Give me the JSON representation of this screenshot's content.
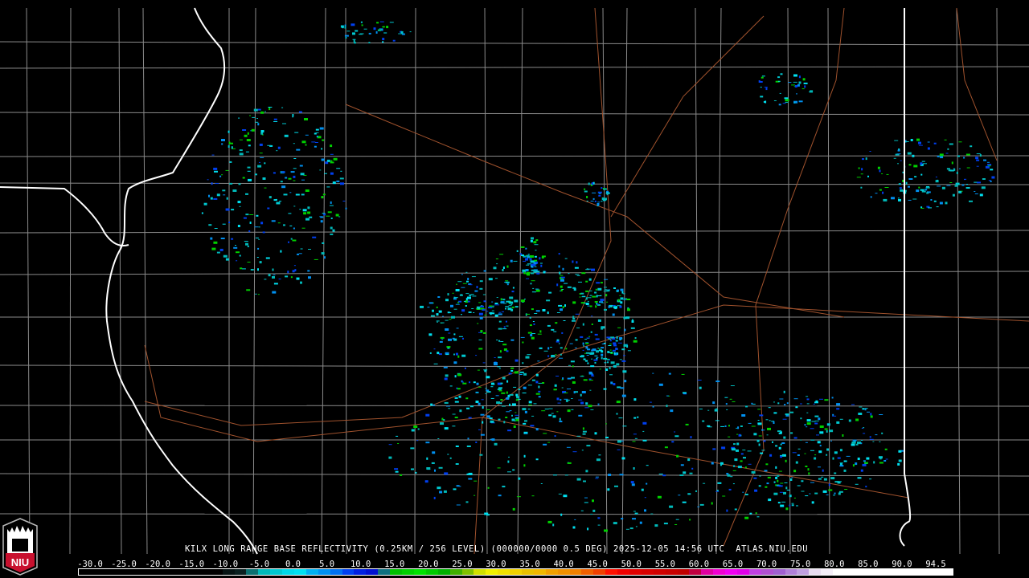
{
  "product_title": "KILX LONG RANGE BASE REFLECTIVITY (0.25KM / 256 LEVEL) (000000/0000 0.5 DEG) 2025-12-05 14:56 UTC  ATLAS.NIU.EDU",
  "logo": {
    "text": "NIU"
  },
  "colorbar": {
    "unit_labels": [
      "-30.0",
      "-25.0",
      "-20.0",
      "-15.0",
      "-10.0",
      "-5.0",
      "0.0",
      "5.0",
      "10.0",
      "15.0",
      "20.0",
      "25.0",
      "30.0",
      "35.0",
      "40.0",
      "45.0",
      "50.0",
      "55.0",
      "60.0",
      "65.0",
      "70.0",
      "75.0",
      "80.0",
      "85.0",
      "90.0",
      "94.5"
    ],
    "colors": [
      "#000000",
      "#000000",
      "#000000",
      "#000000",
      "#000000",
      "#000000",
      "#000000",
      "#000000",
      "#000000",
      "#000000",
      "#000000",
      "#000000",
      "#061414",
      "#0a2020",
      "#0a7070",
      "#00b8b8",
      "#00c8d0",
      "#00d8e8",
      "#00e0f0",
      "#00b0f0",
      "#0090f0",
      "#0070f0",
      "#0040f0",
      "#0020e0",
      "#0010d0",
      "#107080",
      "#00c000",
      "#00d000",
      "#00e000",
      "#00c800",
      "#00b000",
      "#40b000",
      "#80c000",
      "#d0e000",
      "#f0f000",
      "#f0e000",
      "#f0d000",
      "#e8c000",
      "#f0b800",
      "#f0a000",
      "#f09000",
      "#f08000",
      "#f06000",
      "#f04000",
      "#ff1000",
      "#f00000",
      "#e00000",
      "#d80000",
      "#d00000",
      "#c80000",
      "#c00000",
      "#c00040",
      "#e000a0",
      "#f000d0",
      "#f000f0",
      "#e000e8",
      "#c040e0",
      "#b050d0",
      "#a060d0",
      "#b080d8",
      "#c0a0e0",
      "#e8dcf0",
      "#f4eef8",
      "#ffffff",
      "#ffffff",
      "#ffffff",
      "#ffffff",
      "#ffffff",
      "#ffffff",
      "#ffffff",
      "#ffffff",
      "#ffffff",
      "#ffffff"
    ]
  },
  "map_colors": {
    "state_borders": "#ffffff",
    "county_borders": "#8a8a8a",
    "highways": "#a0522d"
  }
}
